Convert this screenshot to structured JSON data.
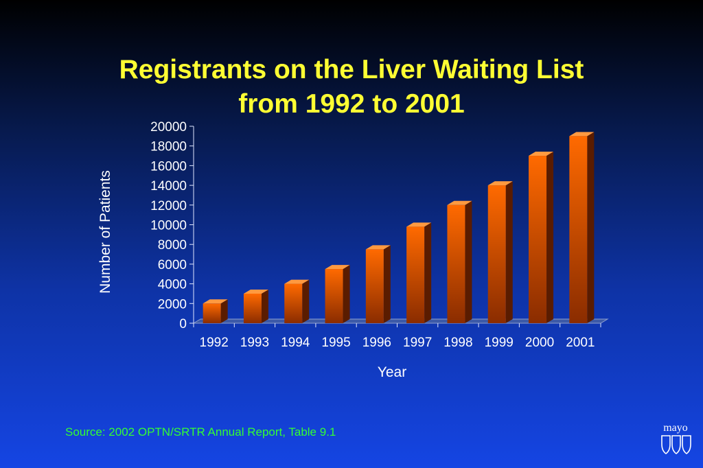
{
  "slide": {
    "title_line_1": "Registrants on the Liver Waiting List",
    "title_line_2": "from 1992 to 2001",
    "source": "Source:  2002 OPTN/SRTR Annual Report, Table 9.1",
    "logo_text": "mayo",
    "logo_icon": "triple-shield-icon"
  },
  "colors": {
    "title": "#ffff33",
    "source": "#33ff33",
    "bar_front_top": "#ff6a00",
    "bar_front_bottom": "#8a2c00",
    "bar_side": "#5a1c00",
    "bar_top": "#ff9a40",
    "axis_text": "#ffffff"
  },
  "chart_data": {
    "type": "bar",
    "categories": [
      "1992",
      "1993",
      "1994",
      "1995",
      "1996",
      "1997",
      "1998",
      "1999",
      "2000",
      "2001"
    ],
    "values": [
      2000,
      3000,
      4000,
      5500,
      7500,
      9800,
      12000,
      14000,
      17000,
      19000
    ],
    "title": "Registrants on the Liver Waiting List from 1992 to 2001",
    "xlabel": "Year",
    "ylabel": "Number of Patients",
    "ylim": [
      0,
      20000
    ],
    "yticks": [
      0,
      2000,
      4000,
      6000,
      8000,
      10000,
      12000,
      14000,
      16000,
      18000,
      20000
    ],
    "grid": false,
    "legend": "none",
    "style": "3d"
  }
}
